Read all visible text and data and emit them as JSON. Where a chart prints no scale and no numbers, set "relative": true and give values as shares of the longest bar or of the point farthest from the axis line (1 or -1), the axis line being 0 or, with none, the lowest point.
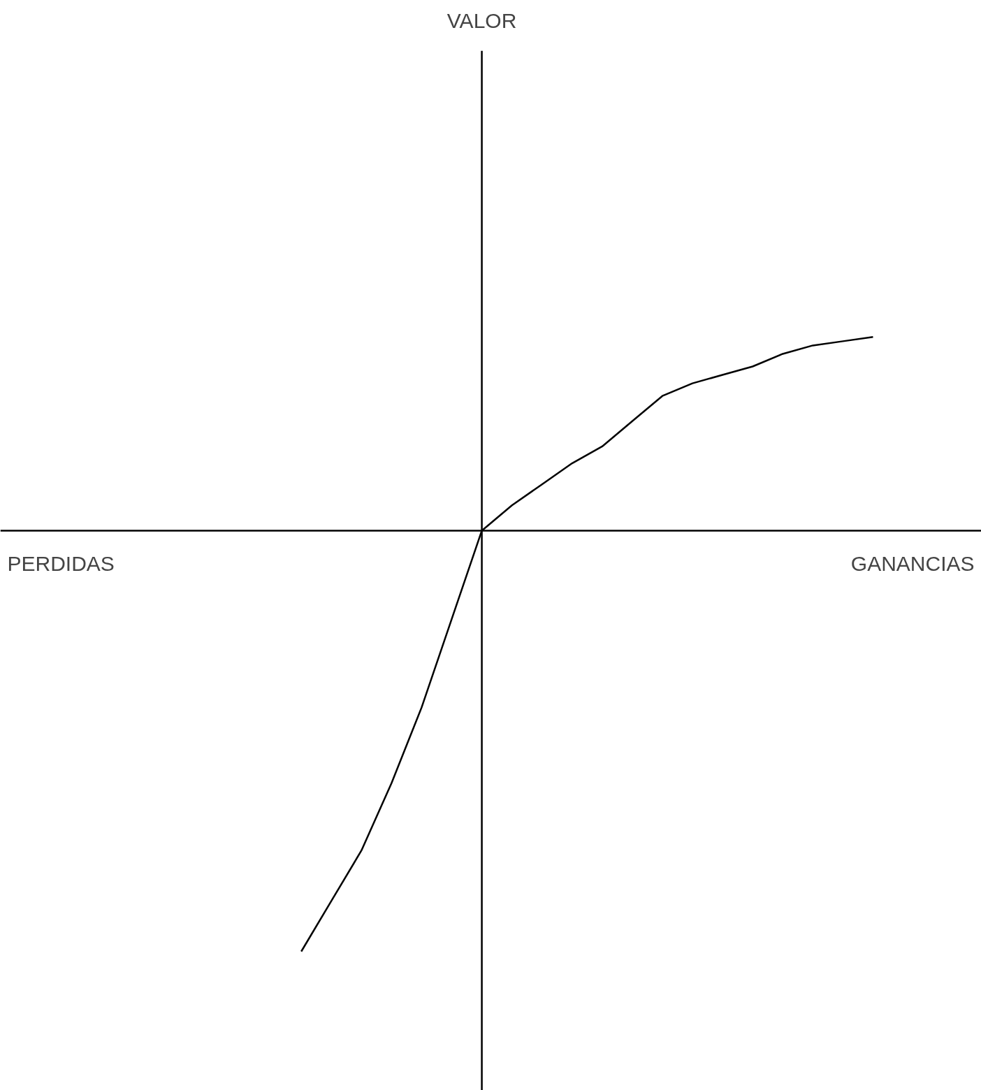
{
  "chart_data": {
    "type": "line",
    "relative": true,
    "annotations": [
      "VALOR",
      "PERDIDAS",
      "GANANCIAS"
    ],
    "categories": [
      null,
      null,
      null,
      null,
      null,
      null,
      null,
      null,
      null,
      null,
      null,
      null,
      null,
      null,
      null,
      null,
      null,
      null,
      null,
      null
    ],
    "series": [
      {
        "color": "#000000",
        "values": [
          -1.0,
          -0.88,
          -0.76,
          -0.6,
          -0.42,
          -0.21,
          0,
          0.06,
          0.11,
          0.16,
          0.2,
          0.26,
          0.32,
          0.35,
          0.37,
          0.39,
          0.42,
          0.44,
          0.45,
          0.46
        ]
      }
    ],
    "grid": false
  }
}
